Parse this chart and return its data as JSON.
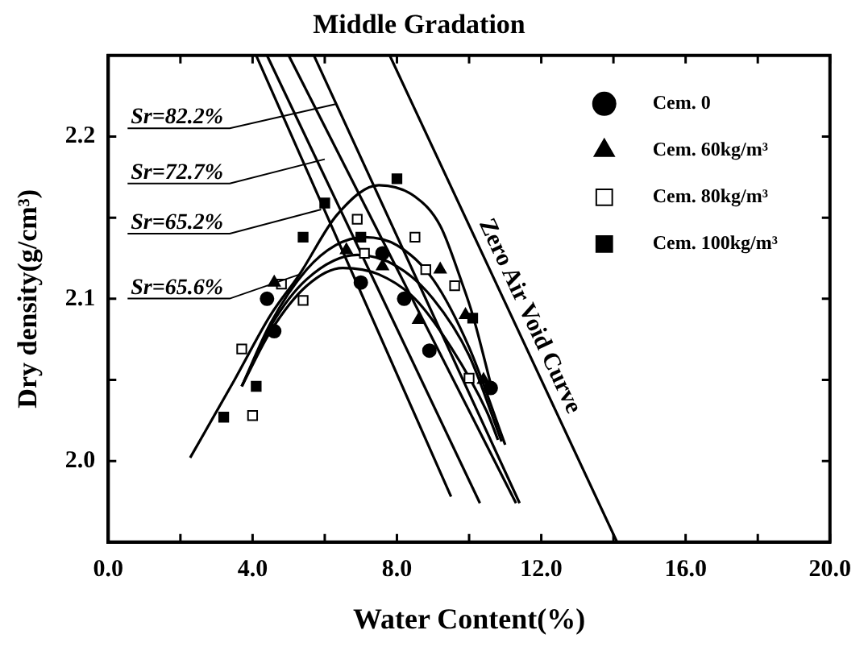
{
  "chart_data": {
    "type": "scatter",
    "title": "Middle Gradation",
    "xlabel": "Water Content(%)",
    "ylabel": "Dry density(g/cm³)",
    "xlim": [
      0,
      20
    ],
    "ylim": [
      1.95,
      2.25
    ],
    "xticks": [
      {
        "value": 0,
        "label": "0.0"
      },
      {
        "value": 2,
        "label": null
      },
      {
        "value": 4,
        "label": "4.0"
      },
      {
        "value": 6,
        "label": null
      },
      {
        "value": 8,
        "label": "8.0"
      },
      {
        "value": 10,
        "label": null
      },
      {
        "value": 12,
        "label": "12.0"
      },
      {
        "value": 14,
        "label": null
      },
      {
        "value": 16,
        "label": "16.0"
      },
      {
        "value": 18,
        "label": null
      },
      {
        "value": 20,
        "label": "20.0"
      }
    ],
    "yticks": [
      {
        "value": 2.0,
        "label": "2.0"
      },
      {
        "value": 2.05,
        "label": null
      },
      {
        "value": 2.1,
        "label": "2.1"
      },
      {
        "value": 2.15,
        "label": null
      },
      {
        "value": 2.2,
        "label": "2.2"
      }
    ],
    "grid": false,
    "legend": "top right",
    "series": [
      {
        "name": "Cem. 0",
        "marker": "circle",
        "color": "#000000",
        "x": [
          4.4,
          4.6,
          7.0,
          7.6,
          8.2,
          8.9,
          10.6
        ],
        "values": [
          2.1,
          2.08,
          2.11,
          2.128,
          2.1,
          2.068,
          2.045
        ]
      },
      {
        "name": "Cem. 60kg/m³",
        "marker": "triangle",
        "color": "#000000",
        "x": [
          4.6,
          6.6,
          7.6,
          8.6,
          9.2,
          9.9,
          10.4
        ],
        "values": [
          2.11,
          2.13,
          2.12,
          2.087,
          2.118,
          2.09,
          2.05
        ]
      },
      {
        "name": "Cem. 80kg/m³",
        "marker": "square",
        "color": "#ffffff",
        "x": [
          4.0,
          3.7,
          5.4,
          4.8,
          6.9,
          7.1,
          8.5,
          8.8,
          9.6,
          10.0
        ],
        "values": [
          2.028,
          2.069,
          2.099,
          2.109,
          2.149,
          2.128,
          2.138,
          2.118,
          2.108,
          2.051
        ]
      },
      {
        "name": "Cem. 100kg/m³",
        "marker": "square",
        "color": "#000000",
        "x": [
          3.2,
          4.1,
          5.4,
          6.0,
          7.0,
          8.0,
          10.1
        ],
        "values": [
          2.027,
          2.046,
          2.138,
          2.159,
          2.138,
          2.174,
          2.088
        ]
      },
      {
        "type": "line",
        "marker": "none",
        "color": "#000000",
        "x": [
          2.27,
          3.5,
          4.5,
          5.3,
          6.35,
          7.5,
          8.5,
          9.2,
          9.8,
          10.1,
          10.65
        ],
        "values": [
          2.002,
          2.05,
          2.09,
          2.115,
          2.152,
          2.17,
          2.163,
          2.145,
          2.11,
          2.09,
          2.043
        ]
      },
      {
        "type": "line",
        "marker": "none",
        "color": "#000000",
        "x": [
          3.7,
          4.5,
          5.5,
          6.3,
          7.1,
          8.0,
          9.0,
          10.0,
          11.0
        ],
        "values": [
          2.046,
          2.085,
          2.118,
          2.133,
          2.138,
          2.133,
          2.112,
          2.07,
          2.01
        ]
      },
      {
        "type": "line",
        "marker": "none",
        "color": "#000000",
        "x": [
          3.7,
          4.5,
          5.5,
          6.9,
          8.0,
          9.0,
          10.0,
          10.9
        ],
        "values": [
          2.046,
          2.083,
          2.112,
          2.127,
          2.12,
          2.1,
          2.065,
          2.012
        ]
      },
      {
        "type": "line",
        "marker": "none",
        "color": "#000000",
        "x": [
          3.7,
          4.5,
          5.5,
          6.5,
          7.5,
          8.5,
          9.5,
          10.5,
          10.8
        ],
        "values": [
          2.046,
          2.08,
          2.108,
          2.119,
          2.115,
          2.1,
          2.07,
          2.03,
          2.013
        ]
      },
      {
        "type": "line",
        "marker": "none",
        "color": "#000000",
        "x": [
          4.1,
          9.5
        ],
        "values": [
          2.25,
          1.978
        ]
      },
      {
        "type": "line",
        "marker": "none",
        "color": "#000000",
        "x": [
          4.4,
          10.3
        ],
        "values": [
          2.25,
          1.974
        ]
      },
      {
        "type": "line",
        "marker": "none",
        "color": "#000000",
        "x": [
          5.0,
          11.3
        ],
        "values": [
          2.25,
          1.974
        ]
      },
      {
        "type": "line",
        "marker": "none",
        "color": "#000000",
        "x": [
          5.7,
          11.4
        ],
        "values": [
          2.25,
          1.974
        ]
      },
      {
        "name": "Zero Air Void Curve",
        "type": "line",
        "marker": "none",
        "color": "#000000",
        "x": [
          7.8,
          14.1
        ],
        "values": [
          2.25,
          1.95
        ]
      }
    ],
    "annotations": [
      {
        "text": "Sr=82.2%",
        "x": 6.3,
        "y": 2.22
      },
      {
        "text": "Sr=72.7%",
        "x": 6.0,
        "y": 2.186
      },
      {
        "text": "Sr=65.2%",
        "x": 5.9,
        "y": 2.155
      },
      {
        "text": "Sr=65.6%",
        "x": 5.3,
        "y": 2.115
      }
    ]
  }
}
